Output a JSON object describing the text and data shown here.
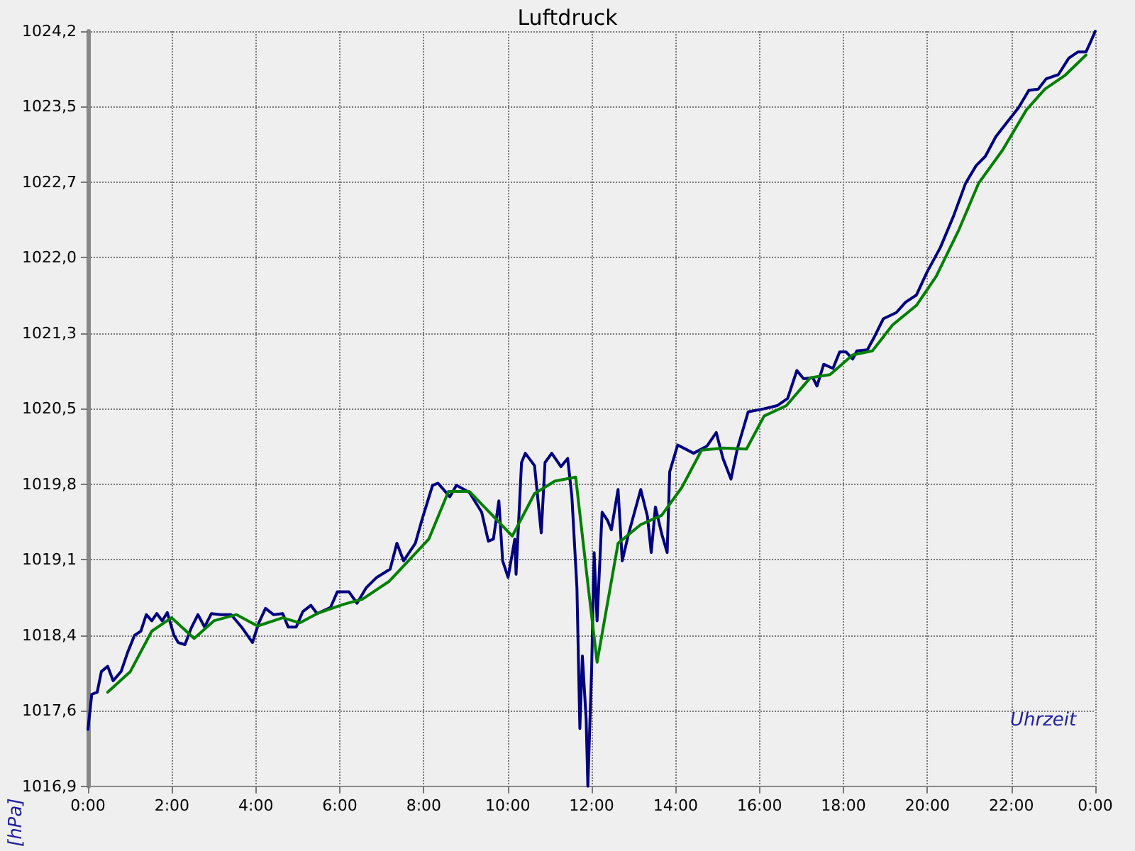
{
  "chart_data": {
    "type": "line",
    "title": "Luftdruck",
    "xlabel": "Uhrzeit",
    "ylabel": "[hPa]",
    "xlim": [
      0,
      24
    ],
    "xticks": [
      {
        "value": 0,
        "label": "0:00"
      },
      {
        "value": 2,
        "label": "2:00"
      },
      {
        "value": 4,
        "label": "4:00"
      },
      {
        "value": 6,
        "label": "6:00"
      },
      {
        "value": 8,
        "label": "8:00"
      },
      {
        "value": 10,
        "label": "10:00"
      },
      {
        "value": 12,
        "label": "12:00"
      },
      {
        "value": 14,
        "label": "14:00"
      },
      {
        "value": 16,
        "label": "16:00"
      },
      {
        "value": 18,
        "label": "18:00"
      },
      {
        "value": 20,
        "label": "20:00"
      },
      {
        "value": 22,
        "label": "22:00"
      },
      {
        "value": 24,
        "label": "0:00"
      }
    ],
    "ylim": [
      1016.9,
      1024.2
    ],
    "yticks": [
      {
        "value": 1016.9,
        "label": "1016,9"
      },
      {
        "value": 1017.63,
        "label": "1017,6"
      },
      {
        "value": 1018.36,
        "label": "1018,4"
      },
      {
        "value": 1019.09,
        "label": "1019,1"
      },
      {
        "value": 1019.82,
        "label": "1019,8"
      },
      {
        "value": 1020.55,
        "label": "1020,5"
      },
      {
        "value": 1021.28,
        "label": "1021,3"
      },
      {
        "value": 1022.01,
        "label": "1022,0"
      },
      {
        "value": 1022.74,
        "label": "1022,7"
      },
      {
        "value": 1023.47,
        "label": "1023,5"
      },
      {
        "value": 1024.2,
        "label": "1024,2"
      }
    ],
    "grid": true,
    "line_style": "solid",
    "marker": "none",
    "series": [
      {
        "color": "#000080",
        "x": [
          0.0,
          0.09,
          0.22,
          0.32,
          0.47,
          0.6,
          0.79,
          0.95,
          1.11,
          1.26,
          1.39,
          1.52,
          1.64,
          1.77,
          1.89,
          2.05,
          2.15,
          2.31,
          2.46,
          2.62,
          2.78,
          2.94,
          3.16,
          3.41,
          3.66,
          3.92,
          4.07,
          4.23,
          4.42,
          4.64,
          4.77,
          4.96,
          5.12,
          5.31,
          5.46,
          5.78,
          5.94,
          6.22,
          6.41,
          6.63,
          6.88,
          7.2,
          7.36,
          7.52,
          7.8,
          7.96,
          8.21,
          8.34,
          8.62,
          8.78,
          9.09,
          9.38,
          9.54,
          9.66,
          9.79,
          9.88,
          10.01,
          10.17,
          10.2,
          10.33,
          10.42,
          10.64,
          10.8,
          10.89,
          11.05,
          11.27,
          11.43,
          11.53,
          11.65,
          11.72,
          11.78,
          11.87,
          11.91,
          12.0,
          12.06,
          12.13,
          12.25,
          12.38,
          12.47,
          12.63,
          12.73,
          12.88,
          13.17,
          13.33,
          13.42,
          13.52,
          13.67,
          13.8,
          13.86,
          14.05,
          14.43,
          14.75,
          14.97,
          15.13,
          15.32,
          15.47,
          15.73,
          16.11,
          16.42,
          16.67,
          16.89,
          17.05,
          17.27,
          17.37,
          17.53,
          17.75,
          17.91,
          18.06,
          18.22,
          18.32,
          18.57,
          18.73,
          18.95,
          19.26,
          19.48,
          19.74,
          19.99,
          20.31,
          20.62,
          20.91,
          21.16,
          21.38,
          21.63,
          21.88,
          22.17,
          22.42,
          22.64,
          22.83,
          23.12,
          23.37,
          23.59,
          23.78,
          23.87,
          24.0
        ],
        "values": [
          1017.45,
          1017.79,
          1017.81,
          1018.01,
          1018.06,
          1017.92,
          1018.01,
          1018.2,
          1018.36,
          1018.4,
          1018.56,
          1018.5,
          1018.57,
          1018.5,
          1018.58,
          1018.36,
          1018.29,
          1018.27,
          1018.43,
          1018.56,
          1018.44,
          1018.57,
          1018.56,
          1018.56,
          1018.44,
          1018.29,
          1018.48,
          1018.62,
          1018.56,
          1018.57,
          1018.44,
          1018.44,
          1018.59,
          1018.65,
          1018.57,
          1018.63,
          1018.78,
          1018.78,
          1018.67,
          1018.82,
          1018.92,
          1019.0,
          1019.25,
          1019.08,
          1019.25,
          1019.48,
          1019.81,
          1019.83,
          1019.7,
          1019.81,
          1019.74,
          1019.55,
          1019.27,
          1019.29,
          1019.66,
          1019.08,
          1018.92,
          1019.29,
          1018.95,
          1020.03,
          1020.12,
          1020.0,
          1019.35,
          1020.03,
          1020.12,
          1019.99,
          1020.07,
          1019.7,
          1018.82,
          1017.46,
          1018.16,
          1017.55,
          1016.9,
          1018.03,
          1019.16,
          1018.5,
          1019.55,
          1019.47,
          1019.38,
          1019.77,
          1019.08,
          1019.34,
          1019.77,
          1019.51,
          1019.16,
          1019.6,
          1019.34,
          1019.16,
          1019.94,
          1020.2,
          1020.12,
          1020.19,
          1020.32,
          1020.07,
          1019.87,
          1020.16,
          1020.52,
          1020.55,
          1020.58,
          1020.65,
          1020.92,
          1020.84,
          1020.85,
          1020.77,
          1020.98,
          1020.94,
          1021.1,
          1021.1,
          1021.03,
          1021.11,
          1021.12,
          1021.24,
          1021.42,
          1021.48,
          1021.58,
          1021.65,
          1021.87,
          1022.11,
          1022.41,
          1022.73,
          1022.9,
          1022.99,
          1023.18,
          1023.31,
          1023.46,
          1023.63,
          1023.64,
          1023.74,
          1023.78,
          1023.94,
          1024.0,
          1024.0,
          1024.08,
          1024.2
        ]
      },
      {
        "color": "#008000",
        "x": [
          0.47,
          1.01,
          1.52,
          1.99,
          2.53,
          3.0,
          3.54,
          4.04,
          4.64,
          5.05,
          5.46,
          6.09,
          6.54,
          7.17,
          8.12,
          8.59,
          9.09,
          10.11,
          10.64,
          11.12,
          11.62,
          11.91,
          12.13,
          12.63,
          13.17,
          13.67,
          14.15,
          14.62,
          15.13,
          15.69,
          16.11,
          16.64,
          17.21,
          17.68,
          18.22,
          18.69,
          19.17,
          19.74,
          20.21,
          20.75,
          21.22,
          21.79,
          22.36,
          22.8,
          23.27,
          23.78
        ],
        "values": [
          1017.81,
          1018.01,
          1018.4,
          1018.53,
          1018.33,
          1018.5,
          1018.56,
          1018.45,
          1018.53,
          1018.48,
          1018.57,
          1018.66,
          1018.71,
          1018.88,
          1019.29,
          1019.75,
          1019.75,
          1019.32,
          1019.73,
          1019.85,
          1019.89,
          1018.86,
          1018.1,
          1019.25,
          1019.43,
          1019.52,
          1019.79,
          1020.15,
          1020.17,
          1020.16,
          1020.48,
          1020.58,
          1020.85,
          1020.88,
          1021.07,
          1021.11,
          1021.36,
          1021.55,
          1021.83,
          1022.28,
          1022.73,
          1023.05,
          1023.44,
          1023.64,
          1023.77,
          1023.97
        ]
      }
    ]
  }
}
